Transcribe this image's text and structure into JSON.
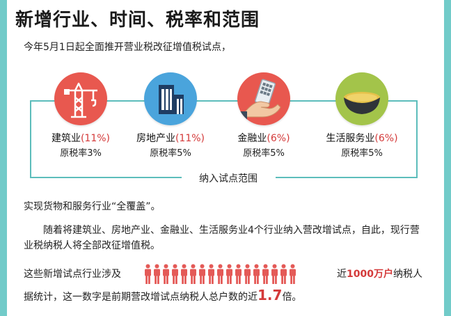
{
  "title": "新增行业、时间、税率和范围",
  "intro": "今年5月1日起全面推开营业税改征增值税试点，",
  "industries": [
    {
      "name": "建筑业",
      "pct": "(11%)",
      "orig_rate": "原税率3%",
      "icon": "crane-icon"
    },
    {
      "name": "房地产业",
      "pct": "(11%)",
      "orig_rate": "原税率5%",
      "icon": "building-icon"
    },
    {
      "name": "金融业",
      "pct": "(6%)",
      "orig_rate": "原税率5%",
      "icon": "money-phone-icon"
    },
    {
      "name": "生活服务业",
      "pct": "(6%)",
      "orig_rate": "原税率5%",
      "icon": "bowl-icon"
    }
  ],
  "scope_label": "纳入试点范围",
  "paragraph1": "实现货物和服务行业“全覆盖”。",
  "paragraph2": "随着将建筑业、房地产业、金融业、生活服务业4个行业纳入营改增试点，自此，现行营业税纳税人将全部改征增值税。",
  "paragraph3_left": "这些新增试点行业涉及",
  "paragraph3_right_prefix": "近",
  "paragraph3_highlight": "1000万户",
  "paragraph3_suffix": "纳税人",
  "paragraph4_prefix": "据统计，这一数字是前期营改增试点纳税人总户数的近",
  "paragraph4_highlight": "1.7",
  "paragraph4_suffix": "倍。",
  "people_count": 17,
  "colors": {
    "accent_teal": "#5cbdbb",
    "side_bar": "#72cbc9",
    "highlight_red": "#d43a3a",
    "person_red": "#e45a57",
    "circle_red": "#e8584f",
    "circle_blue": "#4aa4dc",
    "circle_green": "#a3c44a"
  }
}
